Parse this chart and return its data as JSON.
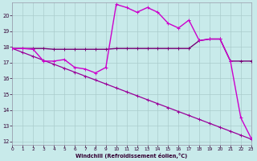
{
  "background_color": "#c8eaea",
  "grid_color": "#aacccc",
  "xlim": [
    0,
    23
  ],
  "ylim": [
    11.8,
    20.8
  ],
  "yticks": [
    12,
    13,
    14,
    15,
    16,
    17,
    18,
    19,
    20
  ],
  "xticks": [
    0,
    1,
    2,
    3,
    4,
    5,
    6,
    7,
    8,
    9,
    10,
    11,
    12,
    13,
    14,
    15,
    16,
    17,
    18,
    19,
    20,
    21,
    22,
    23
  ],
  "xlabel": "Windchill (Refroidissement éolien,°C)",
  "line_diagonal_x": [
    0,
    1,
    2,
    3,
    4,
    5,
    6,
    7,
    8,
    9,
    10,
    11,
    12,
    13,
    14,
    15,
    16,
    17,
    18,
    19,
    20,
    21,
    22,
    23
  ],
  "line_diagonal_y": [
    17.9,
    17.65,
    17.4,
    17.15,
    16.9,
    16.65,
    16.4,
    16.15,
    15.9,
    15.65,
    15.4,
    15.15,
    14.9,
    14.65,
    14.4,
    14.15,
    13.9,
    13.65,
    13.4,
    13.15,
    12.9,
    12.65,
    12.4,
    12.15
  ],
  "line_flat_x": [
    0,
    1,
    2,
    3,
    4,
    5,
    6,
    7,
    8,
    9,
    10,
    11,
    12,
    13,
    14,
    15,
    16,
    17,
    18,
    19,
    20,
    21,
    22,
    23
  ],
  "line_flat_y": [
    17.9,
    17.9,
    17.9,
    17.9,
    17.85,
    17.85,
    17.85,
    17.85,
    17.85,
    17.85,
    17.9,
    17.9,
    17.9,
    17.9,
    17.9,
    17.9,
    17.9,
    17.9,
    18.4,
    18.5,
    18.5,
    17.1,
    17.1,
    17.1
  ],
  "line_jagged_x": [
    0,
    1,
    2,
    3,
    4,
    5,
    6,
    7,
    8,
    9,
    10,
    11,
    12,
    13,
    14,
    15,
    16,
    17,
    18,
    19,
    20,
    21,
    22,
    23
  ],
  "line_jagged_y": [
    17.9,
    17.9,
    17.85,
    17.1,
    17.1,
    17.2,
    16.7,
    16.6,
    16.35,
    16.7,
    20.7,
    20.5,
    20.2,
    20.5,
    20.2,
    19.5,
    19.2,
    19.7,
    18.4,
    18.5,
    18.5,
    17.1,
    13.5,
    12.2
  ],
  "color_diagonal": "#990099",
  "color_flat": "#770077",
  "color_jagged": "#cc00cc"
}
